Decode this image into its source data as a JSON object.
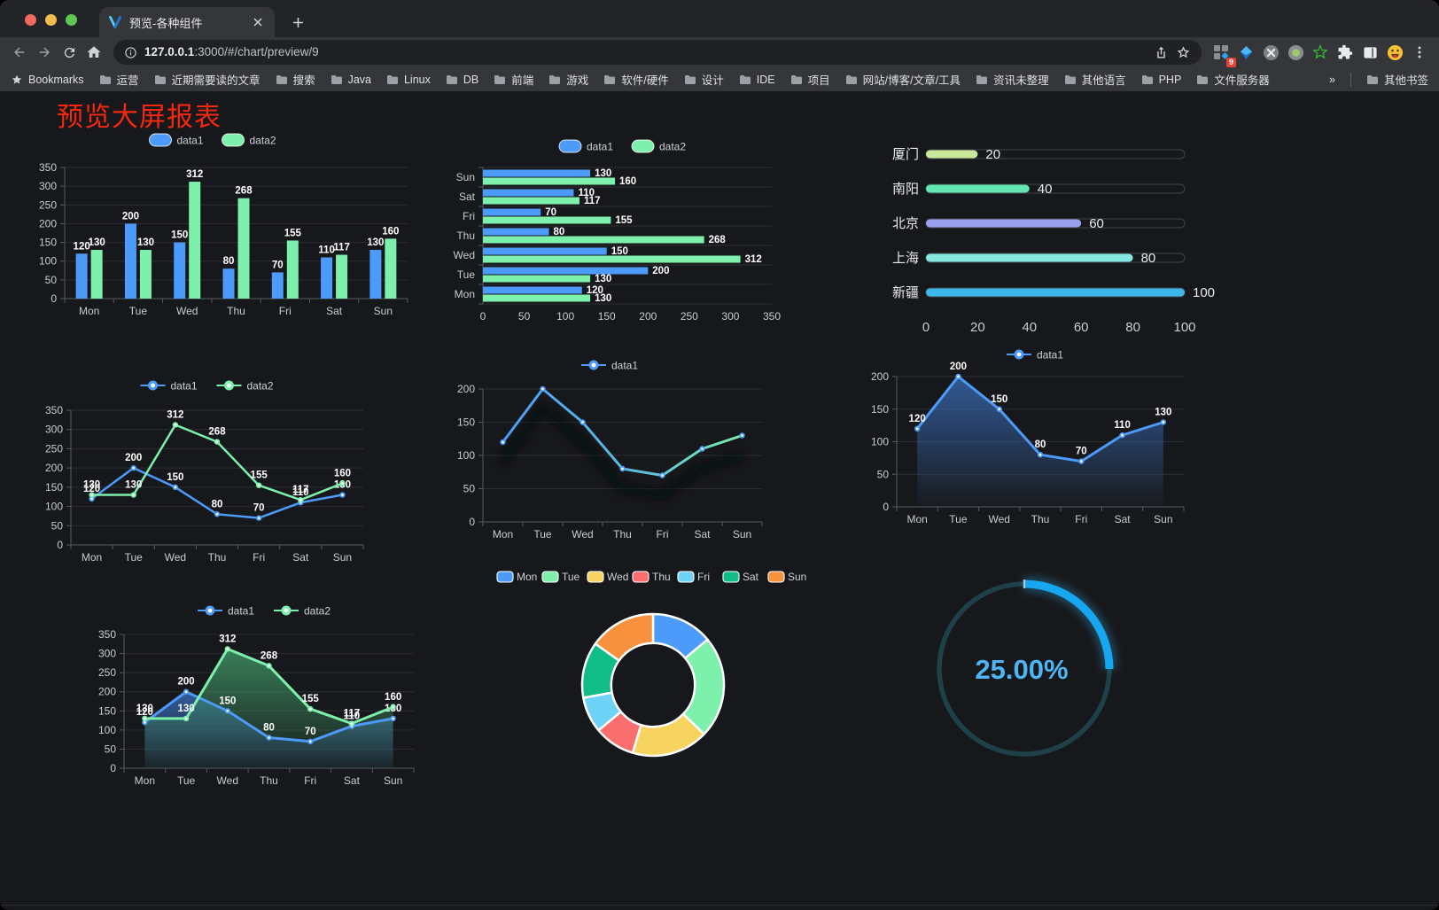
{
  "browser": {
    "tab": {
      "title": "预览-各种组件"
    },
    "url": {
      "host": "127.0.0.1",
      "rest": ":3000/#/chart/preview/9"
    },
    "bookmarks_label": "Bookmarks",
    "bookmarks": [
      "运营",
      "近期需要读的文章",
      "搜索",
      "Java",
      "Linux",
      "DB",
      "前端",
      "游戏",
      "软件/硬件",
      "设计",
      "IDE",
      "项目",
      "网站/博客/文章/工具",
      "资讯未整理",
      "其他语言",
      "PHP",
      "文件服务器"
    ],
    "overflow_chevron": "»",
    "other_bookmarks": "其他书签",
    "extension_badge": "9"
  },
  "page": {
    "title": "预览大屏报表",
    "title_color": "#f5270e",
    "background": "#17181b"
  },
  "chart_data": [
    {
      "id": "bar-grouped",
      "type": "bar",
      "categories": [
        "Mon",
        "Tue",
        "Wed",
        "Thu",
        "Fri",
        "Sat",
        "Sun"
      ],
      "series": [
        {
          "name": "data1",
          "color": "#4c9bfa",
          "values": [
            120,
            200,
            150,
            80,
            70,
            110,
            130
          ]
        },
        {
          "name": "data2",
          "color": "#7df0ab",
          "values": [
            130,
            130,
            312,
            268,
            155,
            117,
            160
          ]
        }
      ],
      "ylim": [
        0,
        350
      ],
      "ytick": 50,
      "legend_position": "top",
      "grid": true
    },
    {
      "id": "bar-horizontal",
      "type": "bar",
      "orientation": "horizontal",
      "categories_top_to_bottom": [
        "Sun",
        "Sat",
        "Fri",
        "Thu",
        "Wed",
        "Tue",
        "Mon"
      ],
      "series": [
        {
          "name": "data1",
          "color": "#4c9bfa",
          "values": [
            130,
            110,
            70,
            80,
            150,
            200,
            120
          ]
        },
        {
          "name": "data2",
          "color": "#7df0ab",
          "values": [
            160,
            117,
            155,
            268,
            312,
            130,
            130
          ]
        }
      ],
      "xlim": [
        0,
        350
      ],
      "xtick": 50,
      "legend_position": "top",
      "grid": true
    },
    {
      "id": "progress-bars",
      "type": "bar",
      "orientation": "horizontal-progress",
      "items": [
        {
          "label": "厦门",
          "value": 20,
          "color": "#c9e89a"
        },
        {
          "label": "南阳",
          "value": 40,
          "color": "#63e6b0"
        },
        {
          "label": "北京",
          "value": 60,
          "color": "#9aa0ee"
        },
        {
          "label": "上海",
          "value": 80,
          "color": "#85e8e0"
        },
        {
          "label": "新疆",
          "value": 100,
          "color": "#3db7e8"
        }
      ],
      "xlim": [
        0,
        100
      ],
      "xticks": [
        0,
        20,
        40,
        60,
        80,
        100
      ]
    },
    {
      "id": "line-two-series",
      "type": "line",
      "categories": [
        "Mon",
        "Tue",
        "Wed",
        "Thu",
        "Fri",
        "Sat",
        "Sun"
      ],
      "series": [
        {
          "name": "data1",
          "color": "#4c9bfa",
          "values": [
            120,
            200,
            150,
            80,
            70,
            110,
            130
          ]
        },
        {
          "name": "data2",
          "color": "#7df0ab",
          "values": [
            130,
            130,
            312,
            268,
            155,
            117,
            160
          ]
        }
      ],
      "ylim": [
        0,
        350
      ],
      "ytick": 50,
      "labels": true,
      "legend_position": "top"
    },
    {
      "id": "line-gradient",
      "type": "line",
      "categories": [
        "Mon",
        "Tue",
        "Wed",
        "Thu",
        "Fri",
        "Sat",
        "Sun"
      ],
      "series": [
        {
          "name": "data1",
          "gradient": [
            "#4c9bfa",
            "#7df0ab"
          ],
          "values": [
            120,
            200,
            150,
            80,
            70,
            110,
            130
          ]
        }
      ],
      "ylim": [
        0,
        200
      ],
      "ytick": 50,
      "labels": false,
      "shadow": true,
      "legend_position": "top"
    },
    {
      "id": "area-blue",
      "type": "area",
      "categories": [
        "Mon",
        "Tue",
        "Wed",
        "Thu",
        "Fri",
        "Sat",
        "Sun"
      ],
      "series": [
        {
          "name": "data1",
          "color": "#4c9bfa",
          "area": "#3a6fbd",
          "values": [
            120,
            200,
            150,
            80,
            70,
            110,
            130
          ]
        }
      ],
      "ylim": [
        0,
        200
      ],
      "ytick": 50,
      "labels": true,
      "legend_position": "top"
    },
    {
      "id": "area-two-series",
      "type": "area",
      "categories": [
        "Mon",
        "Tue",
        "Wed",
        "Thu",
        "Fri",
        "Sat",
        "Sun"
      ],
      "series": [
        {
          "name": "data1",
          "color": "#4c9bfa",
          "area": "#3a6fbd",
          "values": [
            120,
            200,
            150,
            80,
            70,
            110,
            130
          ]
        },
        {
          "name": "data2",
          "color": "#7df0ab",
          "area": "#3c8a5f",
          "values": [
            130,
            130,
            312,
            268,
            155,
            117,
            160
          ]
        }
      ],
      "ylim": [
        0,
        350
      ],
      "ytick": 50,
      "labels": true,
      "legend_position": "top"
    },
    {
      "id": "donut",
      "type": "pie",
      "labels": [
        "Mon",
        "Tue",
        "Wed",
        "Thu",
        "Fri",
        "Sat",
        "Sun"
      ],
      "values": [
        120,
        200,
        150,
        80,
        70,
        110,
        130
      ],
      "colors": [
        "#4c9bfa",
        "#7df0ab",
        "#f7d35f",
        "#fa6e6e",
        "#6fd3f7",
        "#10bd86",
        "#f7913d"
      ],
      "inner_radius_ratio": 0.59,
      "border_color": "#ffffff",
      "legend_position": "top"
    },
    {
      "id": "gauge",
      "type": "gauge",
      "value": 25,
      "display": "25.00%",
      "arc_color": "#17a7f1",
      "track_color": "#1d4049",
      "text_color": "#4db5f4"
    }
  ]
}
